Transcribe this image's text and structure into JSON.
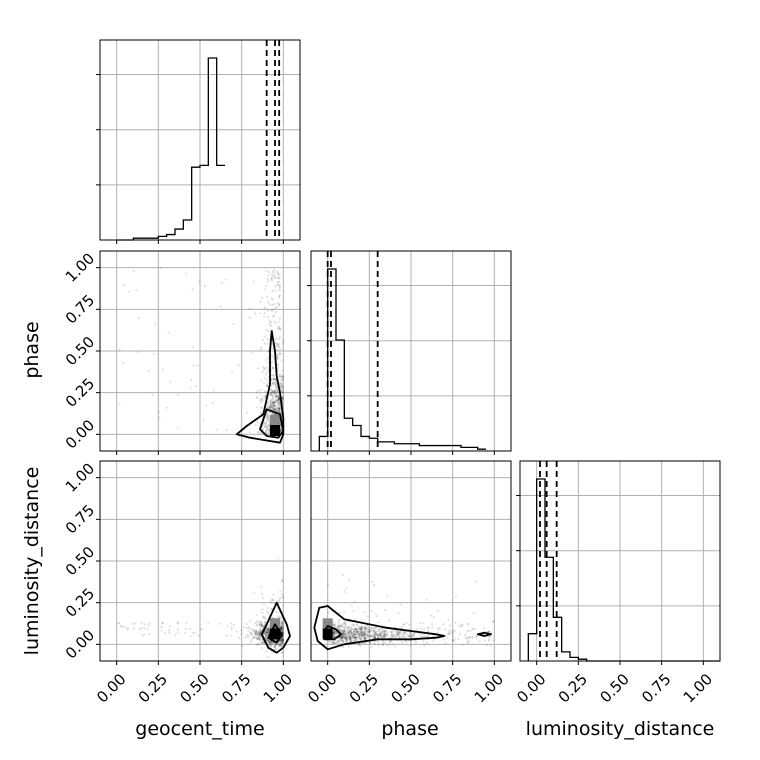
{
  "chart_data": {
    "type": "corner",
    "parameters": [
      "geocent_time",
      "phase",
      "luminosity_distance"
    ],
    "axis_range": [
      -0.1,
      1.1
    ],
    "tick_labels": [
      "0.00",
      "0.25",
      "0.50",
      "0.75",
      "1.00"
    ],
    "tick_values": [
      0.0,
      0.25,
      0.5,
      0.75,
      1.0
    ],
    "grid": true,
    "histograms": [
      {
        "parameter": "geocent_time",
        "bin_width": 0.05,
        "bin_edges_start": 0.0,
        "counts": [
          0,
          0,
          1,
          1,
          1,
          2,
          3,
          6,
          11,
          40,
          41,
          100,
          41
        ],
        "quantile_lines": [
          0.9,
          0.95,
          0.975
        ]
      },
      {
        "parameter": "phase",
        "bin_width": 0.05,
        "bin_edges_start": -0.05,
        "counts": [
          8,
          100,
          61,
          18,
          14,
          8,
          7,
          5,
          5,
          4,
          4,
          4,
          3,
          3,
          3,
          3,
          3,
          2,
          2,
          1
        ],
        "quantile_lines": [
          0.0,
          0.02,
          0.3
        ]
      },
      {
        "parameter": "luminosity_distance",
        "bin_width": 0.05,
        "bin_edges_start": -0.05,
        "counts": [
          15,
          100,
          57,
          24,
          5,
          2,
          1,
          0,
          0,
          0,
          0,
          0,
          0,
          0,
          0,
          0,
          0,
          0,
          0,
          0,
          0,
          0,
          0,
          0
        ],
        "quantile_lines": [
          0.02,
          0.06,
          0.12
        ]
      }
    ],
    "joint_panels": [
      {
        "x": "geocent_time",
        "y": "phase",
        "peak": [
          0.95,
          0.02
        ],
        "contours": [
          [
            [
              0.93,
              0.62
            ],
            [
              0.95,
              0.5
            ],
            [
              0.96,
              0.35
            ],
            [
              0.98,
              0.25
            ],
            [
              1.0,
              0.1
            ],
            [
              1.0,
              0.0
            ],
            [
              0.98,
              -0.05
            ],
            [
              0.8,
              -0.02
            ],
            [
              0.72,
              0.0
            ],
            [
              0.78,
              0.05
            ],
            [
              0.88,
              0.12
            ],
            [
              0.92,
              0.3
            ],
            [
              0.92,
              0.5
            ],
            [
              0.93,
              0.62
            ]
          ],
          [
            [
              0.9,
              0.15
            ],
            [
              0.98,
              0.12
            ],
            [
              1.0,
              0.02
            ],
            [
              0.97,
              -0.02
            ],
            [
              0.9,
              -0.01
            ],
            [
              0.86,
              0.03
            ],
            [
              0.9,
              0.15
            ]
          ]
        ]
      },
      {
        "x": "geocent_time",
        "y": "luminosity_distance",
        "peak": [
          0.95,
          0.06
        ],
        "contours": [
          [
            [
              0.96,
              0.25
            ],
            [
              1.02,
              0.12
            ],
            [
              1.04,
              0.05
            ],
            [
              1.0,
              -0.02
            ],
            [
              0.96,
              -0.05
            ],
            [
              0.91,
              -0.02
            ],
            [
              0.87,
              0.06
            ],
            [
              0.9,
              0.12
            ],
            [
              0.96,
              0.25
            ]
          ],
          [
            [
              0.95,
              0.12
            ],
            [
              0.99,
              0.06
            ],
            [
              0.96,
              0.01
            ],
            [
              0.91,
              0.04
            ],
            [
              0.95,
              0.12
            ]
          ]
        ]
      },
      {
        "x": "phase",
        "y": "luminosity_distance",
        "peak": [
          0.0,
          0.06
        ],
        "contours": [
          [
            [
              -0.05,
              0.22
            ],
            [
              0.0,
              0.23
            ],
            [
              0.1,
              0.15
            ],
            [
              0.35,
              0.1
            ],
            [
              0.5,
              0.08
            ],
            [
              0.65,
              0.06
            ],
            [
              0.7,
              0.05
            ],
            [
              0.65,
              0.04
            ],
            [
              0.5,
              0.03
            ],
            [
              0.3,
              0.03
            ],
            [
              0.1,
              0.0
            ],
            [
              0.0,
              -0.03
            ],
            [
              -0.06,
              0.02
            ],
            [
              -0.08,
              0.1
            ],
            [
              -0.05,
              0.22
            ]
          ],
          [
            [
              0.0,
              0.11
            ],
            [
              0.05,
              0.09
            ],
            [
              0.08,
              0.06
            ],
            [
              0.04,
              0.03
            ],
            [
              -0.02,
              0.03
            ],
            [
              -0.02,
              0.08
            ],
            [
              0.0,
              0.11
            ]
          ],
          [
            [
              0.94,
              0.07
            ],
            [
              0.98,
              0.06
            ],
            [
              0.94,
              0.05
            ],
            [
              0.9,
              0.06
            ],
            [
              0.94,
              0.07
            ]
          ]
        ]
      }
    ]
  }
}
